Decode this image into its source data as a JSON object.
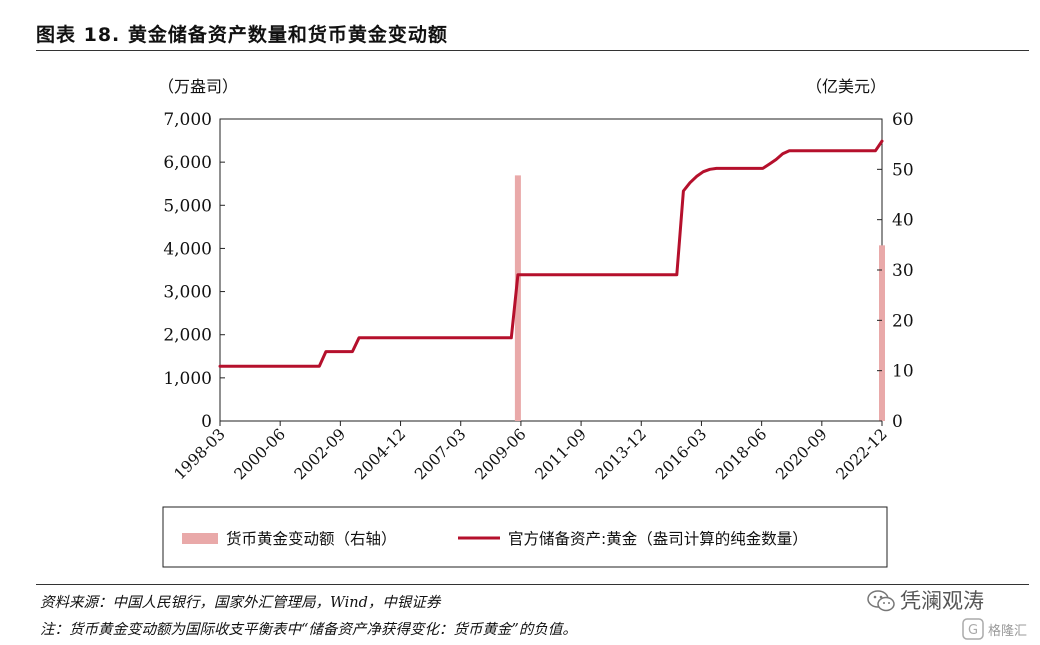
{
  "header": {
    "title": "图表 18.  黄金储备资产数量和货币黄金变动额"
  },
  "chart_data": {
    "type": "line",
    "left_unit": "（万盎司）",
    "right_unit": "（亿美元）",
    "y_left": {
      "min": 0,
      "max": 7000,
      "ticks": [
        "0",
        "1,000",
        "2,000",
        "3,000",
        "4,000",
        "5,000",
        "6,000",
        "7,000"
      ]
    },
    "y_right": {
      "min": 0,
      "max": 60,
      "ticks": [
        "0",
        "10",
        "20",
        "30",
        "40",
        "50",
        "60"
      ]
    },
    "x_tick_labels": [
      "1998-03",
      "2000-06",
      "2002-09",
      "2004-12",
      "2007-03",
      "2009-06",
      "2011-09",
      "2013-12",
      "2016-03",
      "2018-06",
      "2020-09",
      "2022-12"
    ],
    "grid": false,
    "legend_position": "bottom",
    "series": [
      {
        "name": "货币黄金变动额（右轴）",
        "kind": "bar",
        "axis": "right",
        "color": "#e9a9a9",
        "points": [
          {
            "x": "2009-06",
            "y": 48.8
          },
          {
            "x": "2023-03",
            "y": 34.9
          }
        ]
      },
      {
        "name": "官方储备资产:黄金（盎司计算的纯金数量）",
        "kind": "line",
        "axis": "left",
        "color": "#b5102c",
        "points": [
          {
            "x": "1998-03",
            "y": 1267
          },
          {
            "x": "2001-12",
            "y": 1267
          },
          {
            "x": "2002-03",
            "y": 1608
          },
          {
            "x": "2003-03",
            "y": 1608
          },
          {
            "x": "2003-06",
            "y": 1929
          },
          {
            "x": "2009-03",
            "y": 1929
          },
          {
            "x": "2009-06",
            "y": 3389
          },
          {
            "x": "2015-06",
            "y": 3389
          },
          {
            "x": "2015-09",
            "y": 5332
          },
          {
            "x": "2015-12",
            "y": 5523
          },
          {
            "x": "2016-03",
            "y": 5670
          },
          {
            "x": "2016-06",
            "y": 5779
          },
          {
            "x": "2016-09",
            "y": 5833
          },
          {
            "x": "2016-12",
            "y": 5856
          },
          {
            "x": "2018-09",
            "y": 5856
          },
          {
            "x": "2018-12",
            "y": 5956
          },
          {
            "x": "2019-03",
            "y": 6062
          },
          {
            "x": "2019-06",
            "y": 6194
          },
          {
            "x": "2019-09",
            "y": 6264
          },
          {
            "x": "2022-12",
            "y": 6264
          },
          {
            "x": "2023-03",
            "y": 6488
          }
        ]
      }
    ]
  },
  "footer": {
    "source": "资料来源：中国人民银行，国家外汇管理局，Wind，中银证券",
    "note": "注：货币黄金变动额为国际收支平衡表中“储备资产净获得变化：货币黄金”的负值。",
    "watermark": "凭澜观涛",
    "watermark2": "格隆汇"
  }
}
